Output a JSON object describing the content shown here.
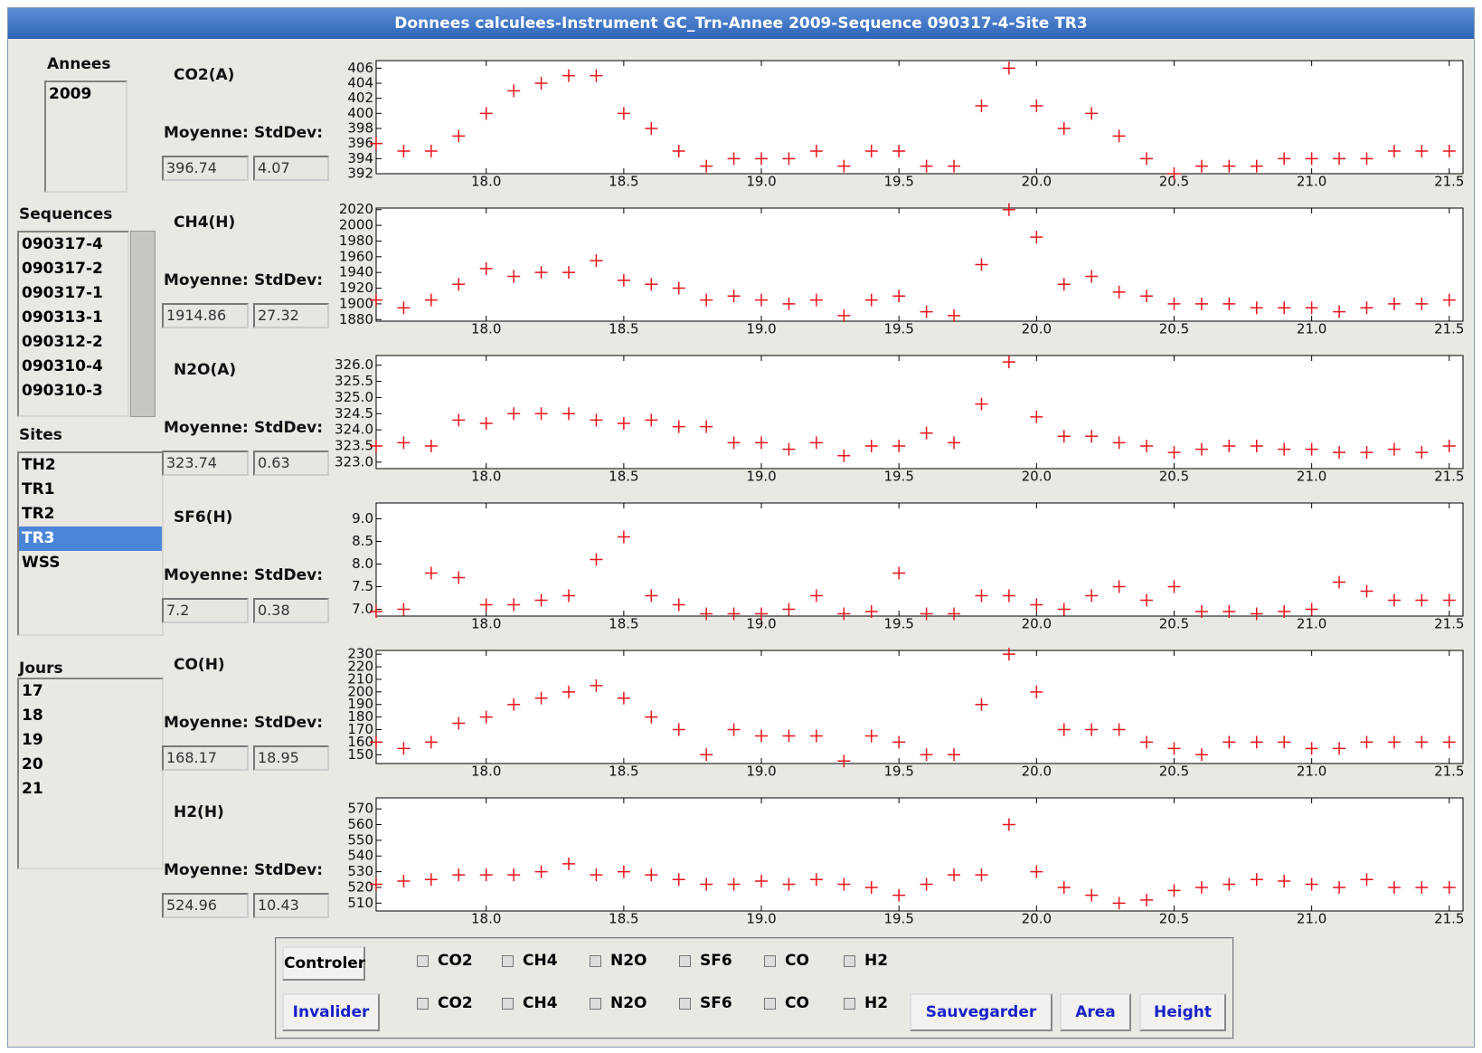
{
  "window": {
    "title": "Donnees calculees-Instrument GC_Trn-Annee 2009-Sequence 090317-4-Site TR3"
  },
  "annees": {
    "label": "Annees",
    "items": [
      "2009"
    ]
  },
  "sequences": {
    "label": "Sequences",
    "items": [
      "090317-4",
      "090317-2",
      "090317-1",
      "090313-1",
      "090312-2",
      "090310-4",
      "090310-3"
    ]
  },
  "sites": {
    "label": "Sites",
    "items": [
      "TH2",
      "TR1",
      "TR2",
      "TR3",
      "WSS"
    ],
    "selected_index": 3
  },
  "jours": {
    "label": "Jours",
    "items": [
      "17",
      "18",
      "19",
      "20",
      "21"
    ]
  },
  "stats": {
    "moyenne_label": "Moyenne:",
    "stddev_label": "StdDev:",
    "rows": [
      {
        "moyenne": 396.74,
        "stddev": 4.07
      },
      {
        "moyenne": 1914.86,
        "stddev": 27.32
      },
      {
        "moyenne": 323.74,
        "stddev": 0.63
      },
      {
        "moyenne": 7.2,
        "stddev": 0.38
      },
      {
        "moyenne": 168.17,
        "stddev": 18.95
      },
      {
        "moyenne": 524.96,
        "stddev": 10.43
      }
    ]
  },
  "controls": {
    "controler": "Controler",
    "invalider": "Invalider",
    "checks": [
      "CO2",
      "CH4",
      "N2O",
      "SF6",
      "CO",
      "H2"
    ],
    "actions": [
      "Sauvegarder",
      "Area",
      "Height"
    ]
  },
  "chart_data": [
    {
      "type": "scatter",
      "title": "CO2(A)",
      "color": "#e8141c",
      "x": [
        17.6,
        17.7,
        17.8,
        17.9,
        18.0,
        18.1,
        18.2,
        18.3,
        18.4,
        18.5,
        18.6,
        18.7,
        18.8,
        18.9,
        19.0,
        19.1,
        19.2,
        19.3,
        19.4,
        19.5,
        19.6,
        19.7,
        19.8,
        19.9,
        20.0,
        20.1,
        20.2,
        20.3,
        20.4,
        20.5,
        20.6,
        20.7,
        20.8,
        20.9,
        21.0,
        21.1,
        21.2,
        21.3,
        21.4,
        21.5
      ],
      "values": [
        396,
        395,
        395,
        397,
        400,
        403,
        404,
        405,
        405,
        400,
        398,
        395,
        393,
        394,
        394,
        394,
        395,
        393,
        395,
        395,
        393,
        393,
        401,
        406,
        401,
        398,
        400,
        397,
        394,
        392,
        393,
        393,
        393,
        394,
        394,
        394,
        394,
        395,
        395,
        395
      ],
      "xlim": [
        17.6,
        21.55
      ],
      "ylim": [
        392,
        407
      ],
      "xticks": [
        {
          "value": 18,
          "label": "18.0"
        },
        18.5,
        {
          "value": 19,
          "label": "19.0"
        },
        19.5,
        {
          "value": 20,
          "label": "20.0"
        },
        20.5,
        {
          "value": 21,
          "label": "21.0"
        },
        21.5
      ],
      "yticks": [
        392,
        394,
        396,
        398,
        400,
        402,
        404,
        406
      ]
    },
    {
      "type": "scatter",
      "title": "CH4(H)",
      "color": "#e8141c",
      "x": [
        17.6,
        17.7,
        17.8,
        17.9,
        18.0,
        18.1,
        18.2,
        18.3,
        18.4,
        18.5,
        18.6,
        18.7,
        18.8,
        18.9,
        19.0,
        19.1,
        19.2,
        19.3,
        19.4,
        19.5,
        19.6,
        19.7,
        19.8,
        19.9,
        20.0,
        20.1,
        20.2,
        20.3,
        20.4,
        20.5,
        20.6,
        20.7,
        20.8,
        20.9,
        21.0,
        21.1,
        21.2,
        21.3,
        21.4,
        21.5
      ],
      "values": [
        1905,
        1895,
        1905,
        1925,
        1945,
        1935,
        1940,
        1940,
        1955,
        1930,
        1925,
        1920,
        1905,
        1910,
        1905,
        1900,
        1905,
        1885,
        1905,
        1910,
        1890,
        1885,
        1950,
        2020,
        1985,
        1925,
        1935,
        1915,
        1910,
        1900,
        1900,
        1900,
        1895,
        1895,
        1895,
        1890,
        1895,
        1900,
        1900,
        1905
      ],
      "xlim": [
        17.6,
        21.55
      ],
      "ylim": [
        1878,
        2022
      ],
      "xticks": [
        {
          "value": 18,
          "label": "18.0"
        },
        18.5,
        {
          "value": 19,
          "label": "19.0"
        },
        19.5,
        {
          "value": 20,
          "label": "20.0"
        },
        20.5,
        {
          "value": 21,
          "label": "21.0"
        },
        21.5
      ],
      "yticks": [
        1880,
        1900,
        1920,
        1940,
        1960,
        1980,
        2000,
        2020
      ]
    },
    {
      "type": "scatter",
      "title": "N2O(A)",
      "color": "#e8141c",
      "x": [
        17.6,
        17.7,
        17.8,
        17.9,
        18.0,
        18.1,
        18.2,
        18.3,
        18.4,
        18.5,
        18.6,
        18.7,
        18.8,
        18.9,
        19.0,
        19.1,
        19.2,
        19.3,
        19.4,
        19.5,
        19.6,
        19.7,
        19.8,
        19.9,
        20.0,
        20.1,
        20.2,
        20.3,
        20.4,
        20.5,
        20.6,
        20.7,
        20.8,
        20.9,
        21.0,
        21.1,
        21.2,
        21.3,
        21.4,
        21.5
      ],
      "values": [
        323.5,
        323.6,
        323.5,
        324.3,
        324.2,
        324.5,
        324.5,
        324.5,
        324.3,
        324.2,
        324.3,
        324.1,
        324.1,
        323.6,
        323.6,
        323.4,
        323.6,
        323.2,
        323.5,
        323.5,
        323.9,
        323.6,
        324.8,
        326.1,
        324.4,
        323.8,
        323.8,
        323.6,
        323.5,
        323.3,
        323.4,
        323.5,
        323.5,
        323.4,
        323.4,
        323.3,
        323.3,
        323.4,
        323.3,
        323.5
      ],
      "xlim": [
        17.6,
        21.55
      ],
      "ylim": [
        322.8,
        326.3
      ],
      "xticks": [
        {
          "value": 18,
          "label": "18.0"
        },
        18.5,
        {
          "value": 19,
          "label": "19.0"
        },
        19.5,
        {
          "value": 20,
          "label": "20.0"
        },
        20.5,
        {
          "value": 21,
          "label": "21.0"
        },
        21.5
      ],
      "yticks": [
        {
          "value": 323,
          "label": "323.0"
        },
        323.5,
        {
          "value": 324,
          "label": "324.0"
        },
        324.5,
        {
          "value": 325,
          "label": "325.0"
        },
        325.5,
        {
          "value": 326,
          "label": "326.0"
        }
      ]
    },
    {
      "type": "scatter",
      "title": "SF6(H)",
      "color": "#e8141c",
      "x": [
        17.6,
        17.7,
        17.8,
        17.9,
        18.0,
        18.1,
        18.2,
        18.3,
        18.4,
        18.5,
        18.6,
        18.7,
        18.8,
        18.9,
        19.0,
        19.1,
        19.2,
        19.3,
        19.4,
        19.5,
        19.6,
        19.7,
        19.8,
        19.9,
        20.0,
        20.1,
        20.2,
        20.3,
        20.4,
        20.5,
        20.6,
        20.7,
        20.8,
        20.9,
        21.0,
        21.1,
        21.2,
        21.3,
        21.4,
        21.5
      ],
      "values": [
        6.95,
        7.0,
        7.8,
        7.7,
        7.1,
        7.1,
        7.2,
        7.3,
        8.1,
        8.6,
        7.3,
        7.1,
        6.9,
        6.9,
        6.9,
        7.0,
        7.3,
        6.9,
        6.95,
        7.8,
        6.9,
        6.9,
        7.3,
        7.3,
        7.1,
        7.0,
        7.3,
        7.5,
        7.2,
        7.5,
        6.95,
        6.95,
        6.9,
        6.95,
        7.0,
        7.6,
        7.4,
        7.2,
        7.2,
        7.2
      ],
      "xlim": [
        17.6,
        21.55
      ],
      "ylim": [
        6.85,
        9.35
      ],
      "xticks": [
        {
          "value": 18,
          "label": "18.0"
        },
        18.5,
        {
          "value": 19,
          "label": "19.0"
        },
        19.5,
        {
          "value": 20,
          "label": "20.0"
        },
        20.5,
        {
          "value": 21,
          "label": "21.0"
        },
        21.5
      ],
      "yticks": [
        {
          "value": 7,
          "label": "7.0"
        },
        7.5,
        {
          "value": 8,
          "label": "8.0"
        },
        8.5,
        {
          "value": 9,
          "label": "9.0"
        }
      ]
    },
    {
      "type": "scatter",
      "title": "CO(H)",
      "color": "#e8141c",
      "x": [
        17.6,
        17.7,
        17.8,
        17.9,
        18.0,
        18.1,
        18.2,
        18.3,
        18.4,
        18.5,
        18.6,
        18.7,
        18.8,
        18.9,
        19.0,
        19.1,
        19.2,
        19.3,
        19.4,
        19.5,
        19.6,
        19.7,
        19.8,
        19.9,
        20.0,
        20.1,
        20.2,
        20.3,
        20.4,
        20.5,
        20.6,
        20.7,
        20.8,
        20.9,
        21.0,
        21.1,
        21.2,
        21.3,
        21.4,
        21.5
      ],
      "values": [
        160,
        155,
        160,
        175,
        180,
        190,
        195,
        200,
        205,
        195,
        180,
        170,
        150,
        170,
        165,
        165,
        165,
        145,
        165,
        160,
        150,
        150,
        190,
        230,
        200,
        170,
        170,
        170,
        160,
        155,
        150,
        160,
        160,
        160,
        155,
        155,
        160,
        160,
        160,
        160
      ],
      "xlim": [
        17.6,
        21.55
      ],
      "ylim": [
        143,
        233
      ],
      "xticks": [
        {
          "value": 18,
          "label": "18.0"
        },
        18.5,
        {
          "value": 19,
          "label": "19.0"
        },
        19.5,
        {
          "value": 20,
          "label": "20.0"
        },
        20.5,
        {
          "value": 21,
          "label": "21.0"
        },
        21.5
      ],
      "yticks": [
        150,
        160,
        170,
        180,
        190,
        200,
        210,
        220,
        230
      ]
    },
    {
      "type": "scatter",
      "title": "H2(H)",
      "color": "#e8141c",
      "x": [
        17.6,
        17.7,
        17.8,
        17.9,
        18.0,
        18.1,
        18.2,
        18.3,
        18.4,
        18.5,
        18.6,
        18.7,
        18.8,
        18.9,
        19.0,
        19.1,
        19.2,
        19.3,
        19.4,
        19.5,
        19.6,
        19.7,
        19.8,
        19.9,
        20.0,
        20.1,
        20.2,
        20.3,
        20.4,
        20.5,
        20.6,
        20.7,
        20.8,
        20.9,
        21.0,
        21.1,
        21.2,
        21.3,
        21.4,
        21.5
      ],
      "values": [
        522,
        524,
        525,
        528,
        528,
        528,
        530,
        535,
        528,
        530,
        528,
        525,
        522,
        522,
        524,
        522,
        525,
        522,
        520,
        515,
        522,
        528,
        528,
        560,
        530,
        520,
        515,
        510,
        512,
        518,
        520,
        522,
        525,
        524,
        522,
        520,
        525,
        520,
        520,
        520
      ],
      "xlim": [
        17.6,
        21.55
      ],
      "ylim": [
        505,
        577
      ],
      "xticks": [
        {
          "value": 18,
          "label": "18.0"
        },
        18.5,
        {
          "value": 19,
          "label": "19.0"
        },
        19.5,
        {
          "value": 20,
          "label": "20.0"
        },
        20.5,
        {
          "value": 21,
          "label": "21.0"
        },
        21.5
      ],
      "yticks": [
        510,
        520,
        530,
        540,
        550,
        560,
        570
      ]
    }
  ]
}
